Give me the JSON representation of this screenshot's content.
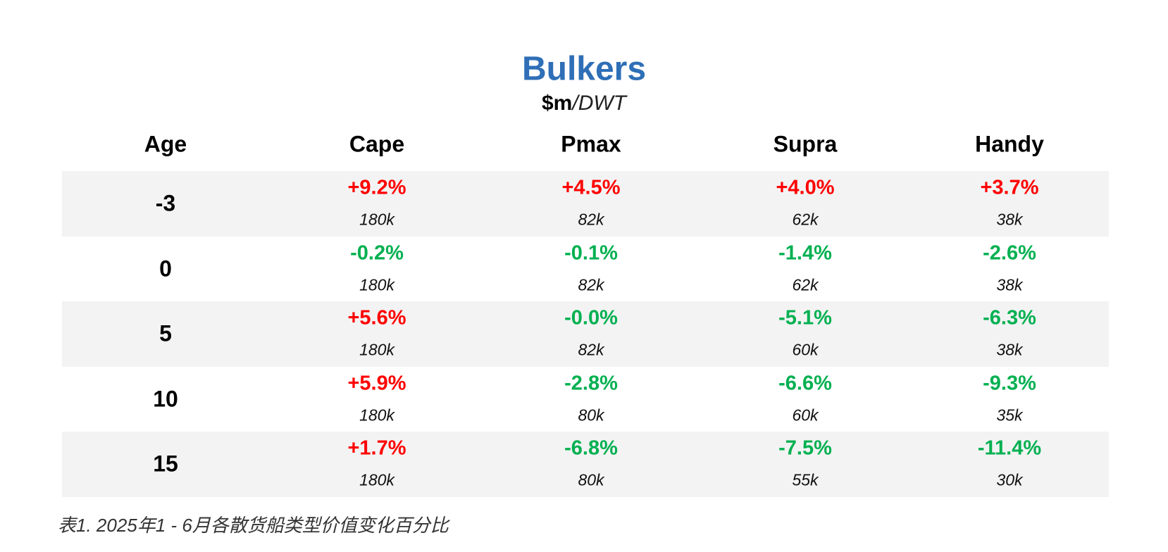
{
  "title": "Bulkers",
  "subtitle": {
    "unit": "$m",
    "per": "/DWT"
  },
  "table": {
    "header": [
      "Age",
      "Cape",
      "Pmax",
      "Supra",
      "Handy"
    ],
    "rows": [
      {
        "age": "-3",
        "cells": [
          {
            "change": "+9.2%",
            "size": "180k",
            "color": "#ff0000"
          },
          {
            "change": "+4.5%",
            "size": "82k",
            "color": "#ff0000"
          },
          {
            "change": "+4.0%",
            "size": "62k",
            "color": "#ff0000"
          },
          {
            "change": "+3.7%",
            "size": "38k",
            "color": "#ff0000"
          }
        ]
      },
      {
        "age": "0",
        "cells": [
          {
            "change": "-0.2%",
            "size": "180k",
            "color": "#00b050"
          },
          {
            "change": "-0.1%",
            "size": "82k",
            "color": "#00b050"
          },
          {
            "change": "-1.4%",
            "size": "62k",
            "color": "#00b050"
          },
          {
            "change": "-2.6%",
            "size": "38k",
            "color": "#00b050"
          }
        ]
      },
      {
        "age": "5",
        "cells": [
          {
            "change": "+5.6%",
            "size": "180k",
            "color": "#ff0000"
          },
          {
            "change": "-0.0%",
            "size": "82k",
            "color": "#00b050"
          },
          {
            "change": "-5.1%",
            "size": "60k",
            "color": "#00b050"
          },
          {
            "change": "-6.3%",
            "size": "38k",
            "color": "#00b050"
          }
        ]
      },
      {
        "age": "10",
        "cells": [
          {
            "change": "+5.9%",
            "size": "180k",
            "color": "#ff0000"
          },
          {
            "change": "-2.8%",
            "size": "80k",
            "color": "#00b050"
          },
          {
            "change": "-6.6%",
            "size": "60k",
            "color": "#00b050"
          },
          {
            "change": "-9.3%",
            "size": "35k",
            "color": "#00b050"
          }
        ]
      },
      {
        "age": "15",
        "cells": [
          {
            "change": "+1.7%",
            "size": "180k",
            "color": "#ff0000"
          },
          {
            "change": "-6.8%",
            "size": "80k",
            "color": "#00b050"
          },
          {
            "change": "-7.5%",
            "size": "55k",
            "color": "#00b050"
          },
          {
            "change": "-11.4%",
            "size": "30k",
            "color": "#00b050"
          }
        ]
      }
    ]
  },
  "caption": "表1. 2025年1 - 6月各散货船类型价值变化百分比"
}
